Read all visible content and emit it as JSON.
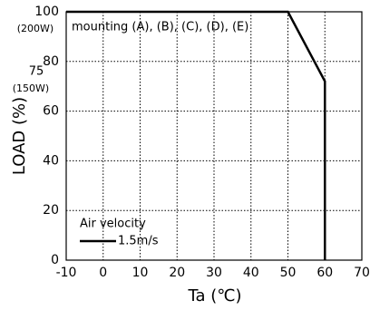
{
  "chart_data": {
    "type": "line",
    "x_label": "Ta (℃)",
    "y_label": "LOAD (%)",
    "annotation": "mounting (A), (B), (C), (D), (E)",
    "load_notes": [
      "(200W)",
      "75",
      "(150W)"
    ],
    "legend_title": "Air velocity",
    "x": [
      -10,
      50,
      60,
      60
    ],
    "series": [
      {
        "name": "1.5m/s",
        "color": "#000000",
        "values": [
          100,
          100,
          72,
          0
        ]
      }
    ],
    "xlim": [
      -10,
      70
    ],
    "xticks": [
      -10,
      0,
      10,
      20,
      30,
      40,
      50,
      60,
      70
    ],
    "ylim": [
      0,
      100
    ],
    "yticks": [
      0,
      20,
      40,
      60,
      80,
      100
    ],
    "grid": true
  }
}
